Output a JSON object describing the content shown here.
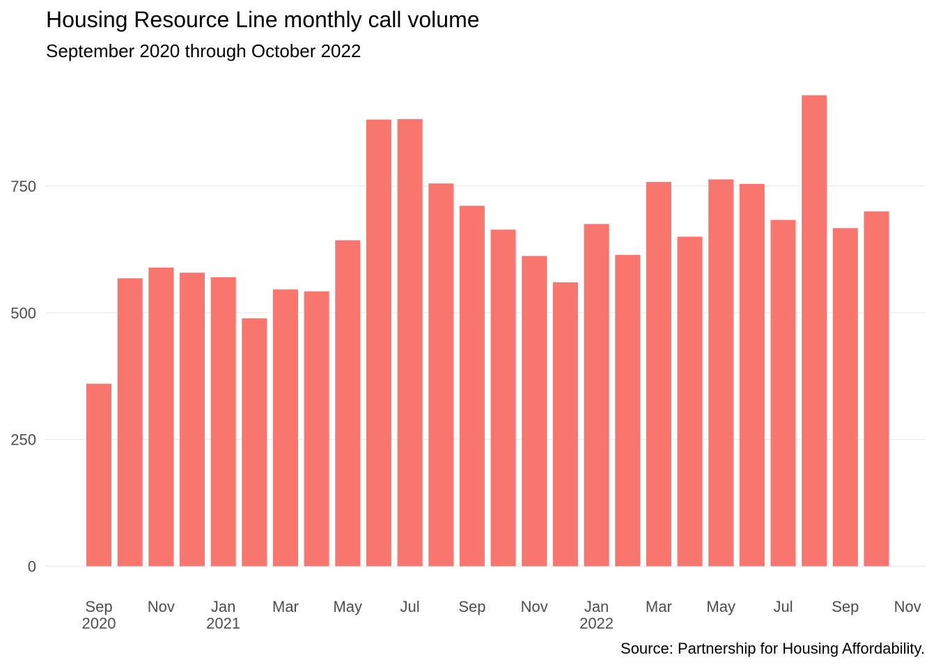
{
  "chart_data": {
    "type": "bar",
    "title": "Housing Resource Line monthly call volume",
    "subtitle": "September 2020 through October 2022",
    "caption": "Source: Partnership for Housing Affordability.",
    "xlabel": "",
    "ylabel": "",
    "categories": [
      "2020-09",
      "2020-10",
      "2020-11",
      "2020-12",
      "2021-01",
      "2021-02",
      "2021-03",
      "2021-04",
      "2021-05",
      "2021-06",
      "2021-07",
      "2021-08",
      "2021-09",
      "2021-10",
      "2021-11",
      "2021-12",
      "2022-01",
      "2022-02",
      "2022-03",
      "2022-04",
      "2022-05",
      "2022-06",
      "2022-07",
      "2022-08",
      "2022-09",
      "2022-10"
    ],
    "values": [
      360,
      568,
      589,
      579,
      570,
      489,
      546,
      542,
      643,
      881,
      882,
      755,
      711,
      664,
      612,
      560,
      675,
      614,
      758,
      650,
      763,
      754,
      683,
      929,
      667,
      700
    ],
    "ylim": [
      0,
      929
    ],
    "y_ticks": [
      0,
      250,
      500,
      750
    ],
    "y_tick_labels": [
      "0",
      "250",
      "500",
      "750"
    ],
    "x_ticks": [
      {
        "date": "2020-09",
        "label": "Sep",
        "sublabel": "2020"
      },
      {
        "date": "2020-11",
        "label": "Nov",
        "sublabel": ""
      },
      {
        "date": "2021-01",
        "label": "Jan",
        "sublabel": "2021"
      },
      {
        "date": "2021-03",
        "label": "Mar",
        "sublabel": ""
      },
      {
        "date": "2021-05",
        "label": "May",
        "sublabel": ""
      },
      {
        "date": "2021-07",
        "label": "Jul",
        "sublabel": ""
      },
      {
        "date": "2021-09",
        "label": "Sep",
        "sublabel": ""
      },
      {
        "date": "2021-11",
        "label": "Nov",
        "sublabel": ""
      },
      {
        "date": "2022-01",
        "label": "Jan",
        "sublabel": "2022"
      },
      {
        "date": "2022-03",
        "label": "Mar",
        "sublabel": ""
      },
      {
        "date": "2022-05",
        "label": "May",
        "sublabel": ""
      },
      {
        "date": "2022-07",
        "label": "Jul",
        "sublabel": ""
      },
      {
        "date": "2022-09",
        "label": "Sep",
        "sublabel": ""
      },
      {
        "date": "2022-11",
        "label": "Nov",
        "sublabel": ""
      }
    ],
    "grid": true,
    "legend": "none",
    "bar_color": "#F8766D",
    "grid_color": "#ebebeb"
  }
}
